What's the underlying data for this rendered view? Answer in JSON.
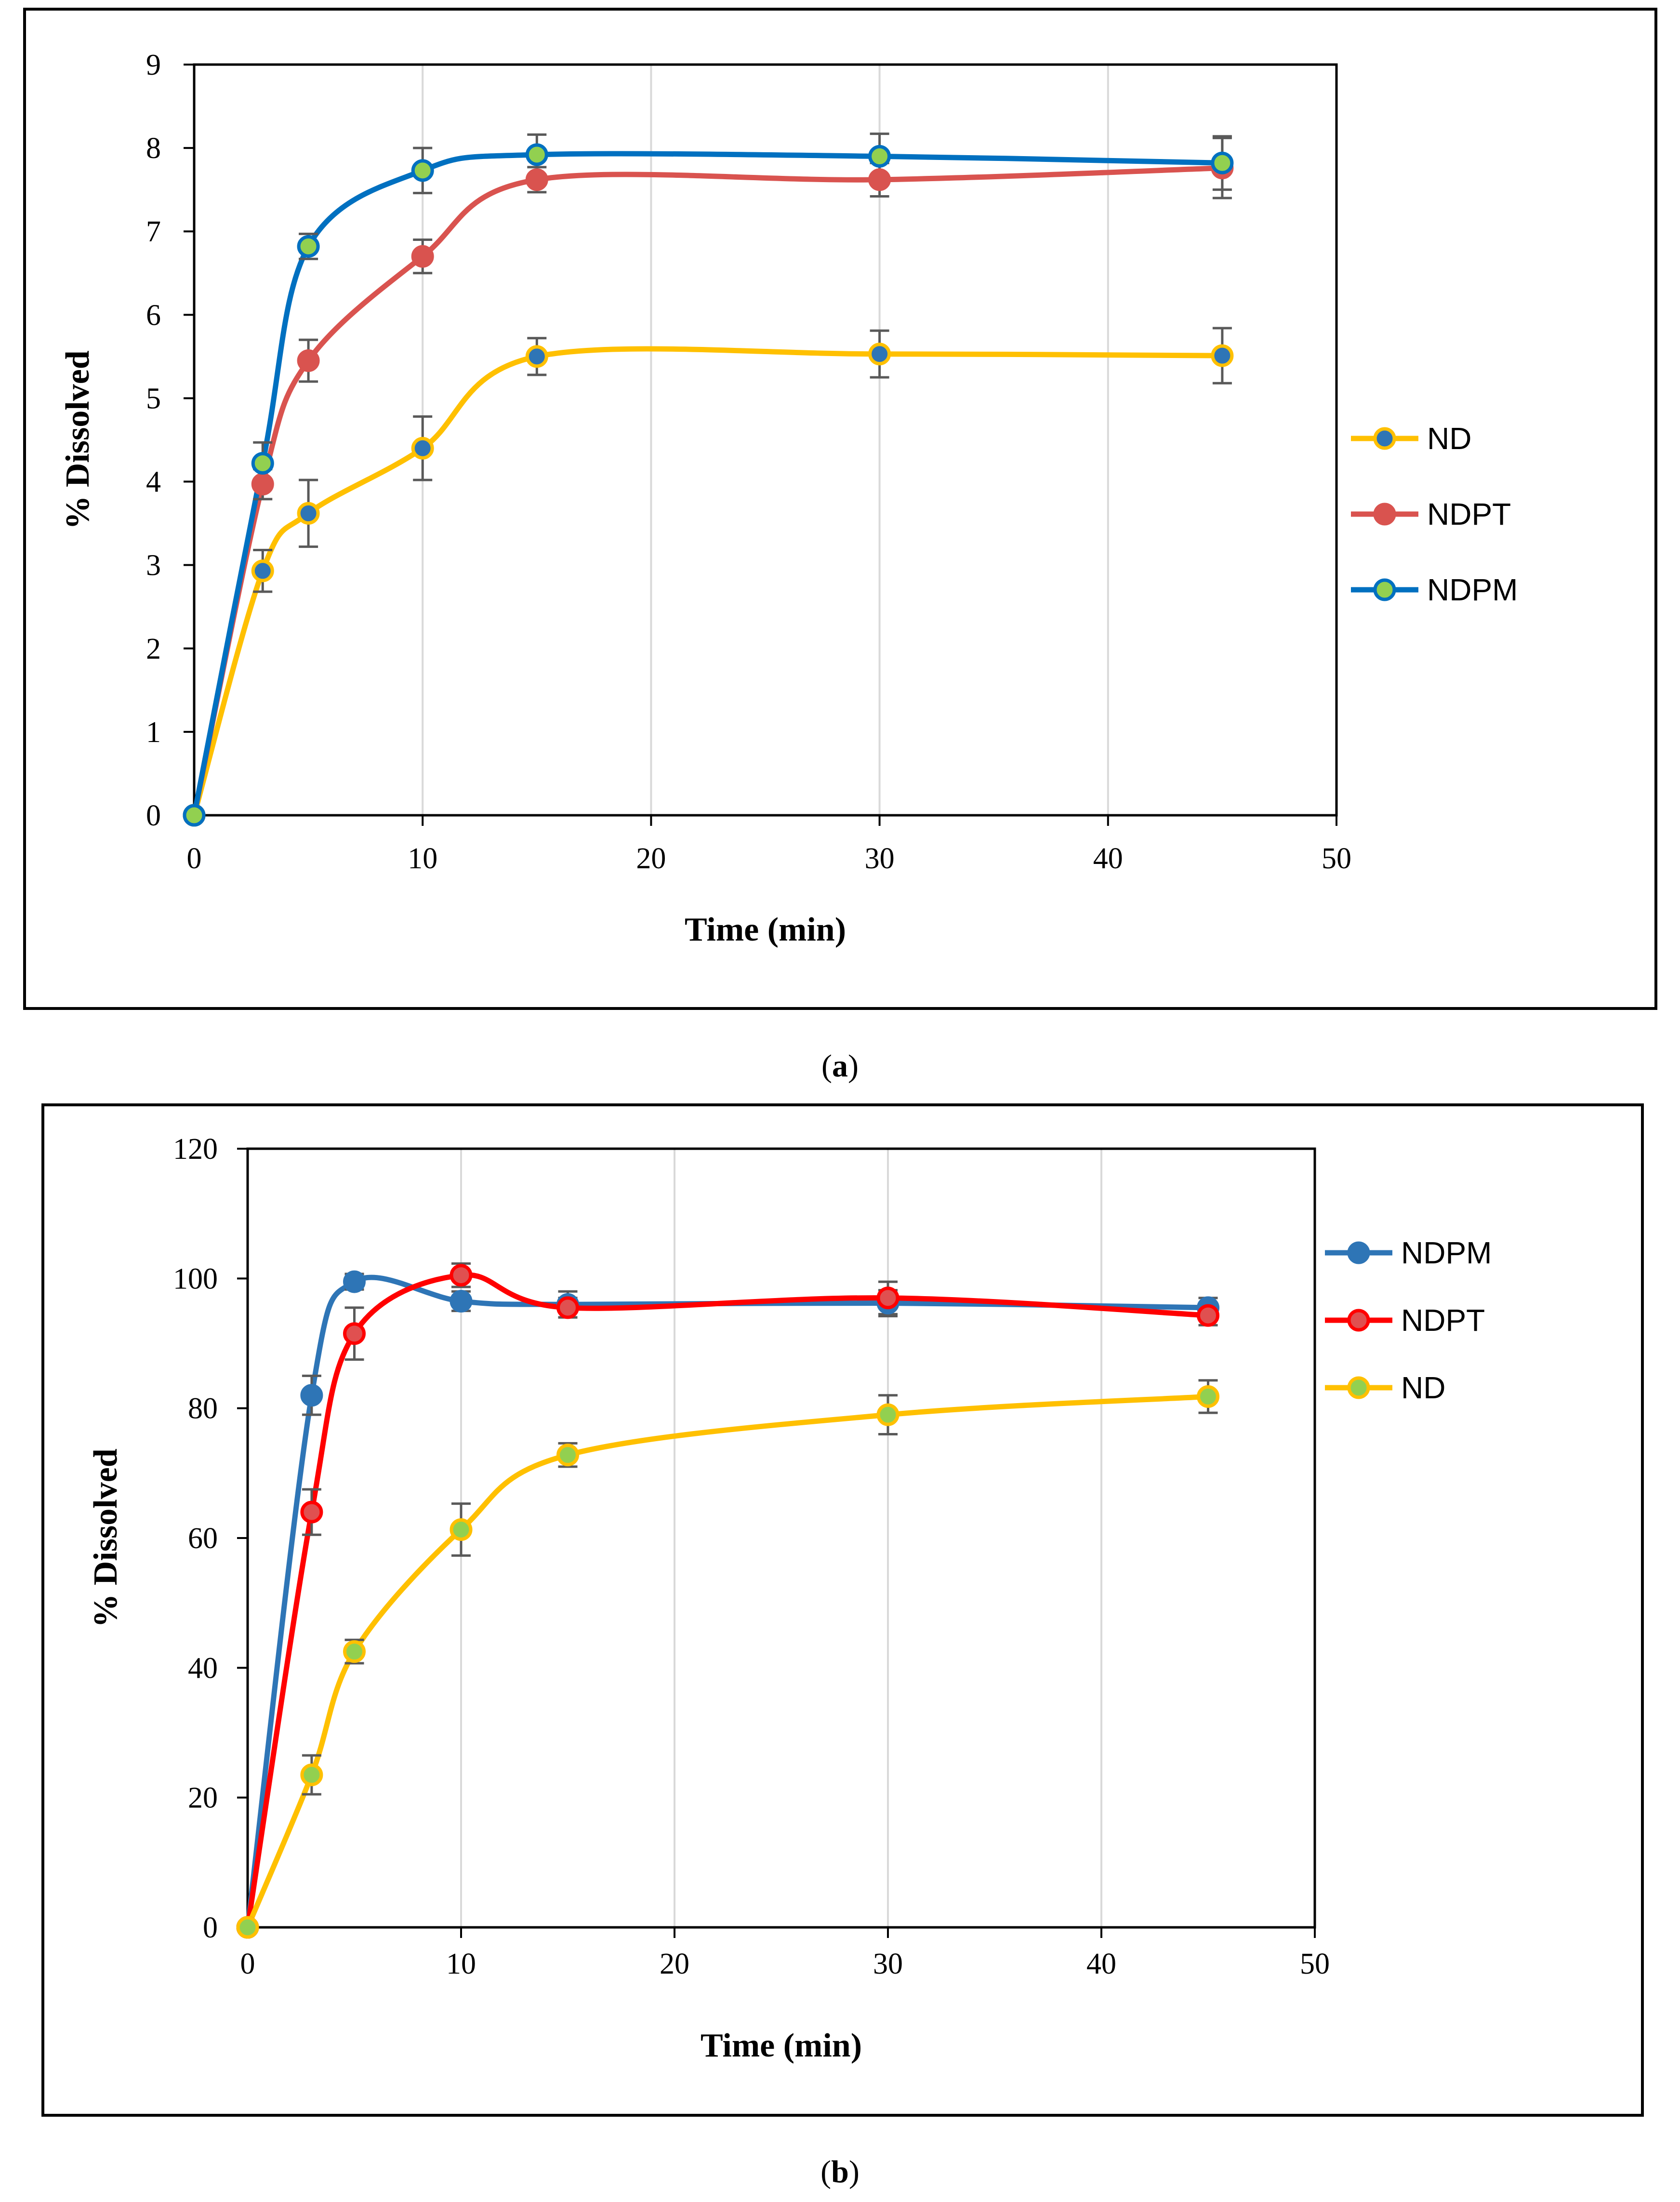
{
  "chart_data": [
    {
      "type": "line",
      "panel_label": "a",
      "xlabel": "Time (min)",
      "ylabel": "% Dissolved",
      "xlim": [
        0,
        50
      ],
      "ylim": [
        0,
        9
      ],
      "xticks": [
        0,
        10,
        20,
        30,
        40,
        50
      ],
      "yticks": [
        0,
        1,
        2,
        3,
        4,
        5,
        6,
        7,
        8,
        9
      ],
      "grid": "vertical",
      "legend_position": "right",
      "legend_order": [
        "ND",
        "NDPT",
        "NDPM"
      ],
      "series": [
        {
          "name": "ND",
          "color": "#ffc000",
          "marker_fill": "#2e75b6",
          "marker_edge": "#ffc000",
          "x": [
            0,
            3,
            5,
            10,
            15,
            30,
            45
          ],
          "y": [
            0,
            2.93,
            3.62,
            4.4,
            5.5,
            5.53,
            5.51
          ],
          "err": [
            0,
            0.25,
            0.4,
            0.38,
            0.22,
            0.28,
            0.33
          ]
        },
        {
          "name": "NDPT",
          "color": "#d9534f",
          "marker_fill": "#d9534f",
          "marker_edge": "#d9534f",
          "x": [
            0,
            3,
            5,
            10,
            15,
            30,
            45
          ],
          "y": [
            0,
            3.97,
            5.45,
            6.7,
            7.62,
            7.62,
            7.76
          ],
          "err": [
            0,
            0.18,
            0.25,
            0.2,
            0.15,
            0.2,
            0.36
          ]
        },
        {
          "name": "NDPM",
          "color": "#0070c0",
          "marker_fill": "#92d050",
          "marker_edge": "#0070c0",
          "x": [
            0,
            3,
            5,
            10,
            15,
            30,
            45
          ],
          "y": [
            0,
            4.22,
            6.82,
            7.73,
            7.92,
            7.9,
            7.82
          ],
          "err": [
            0,
            0.25,
            0.15,
            0.27,
            0.24,
            0.27,
            0.32
          ]
        }
      ]
    },
    {
      "type": "line",
      "panel_label": "b",
      "xlabel": "Time (min)",
      "ylabel": "% Dissolved",
      "xlim": [
        0,
        50
      ],
      "ylim": [
        0,
        120
      ],
      "xticks": [
        0,
        10,
        20,
        30,
        40,
        50
      ],
      "yticks": [
        0,
        20,
        40,
        60,
        80,
        100,
        120
      ],
      "grid": "vertical",
      "legend_position": "right",
      "legend_order": [
        "NDPM",
        "NDPT",
        "ND"
      ],
      "series": [
        {
          "name": "NDPM",
          "color": "#2e75b6",
          "marker_fill": "#2e75b6",
          "marker_edge": "#2e75b6",
          "x": [
            0,
            3,
            5,
            10,
            15,
            30,
            45
          ],
          "y": [
            0,
            82,
            99.5,
            96.5,
            96,
            96.2,
            95.5
          ],
          "err": [
            0,
            3,
            1.2,
            1.5,
            2,
            2,
            1.5
          ]
        },
        {
          "name": "NDPT",
          "color": "#ff0000",
          "marker_fill": "#e05050",
          "marker_edge": "#ff0000",
          "x": [
            0,
            3,
            5,
            10,
            15,
            30,
            45
          ],
          "y": [
            0,
            64,
            91.5,
            100.5,
            95.5,
            97,
            94.3
          ],
          "err": [
            0,
            3.5,
            4,
            1.8,
            1.5,
            2.5,
            1.5
          ]
        },
        {
          "name": "ND",
          "color": "#ffc000",
          "marker_fill": "#92d050",
          "marker_edge": "#ffc000",
          "x": [
            0,
            3,
            5,
            10,
            15,
            30,
            45
          ],
          "y": [
            0,
            23.5,
            42.5,
            61.3,
            72.8,
            79,
            81.8
          ],
          "err": [
            0,
            3,
            1.8,
            4,
            1.8,
            3,
            2.5
          ]
        }
      ]
    }
  ]
}
